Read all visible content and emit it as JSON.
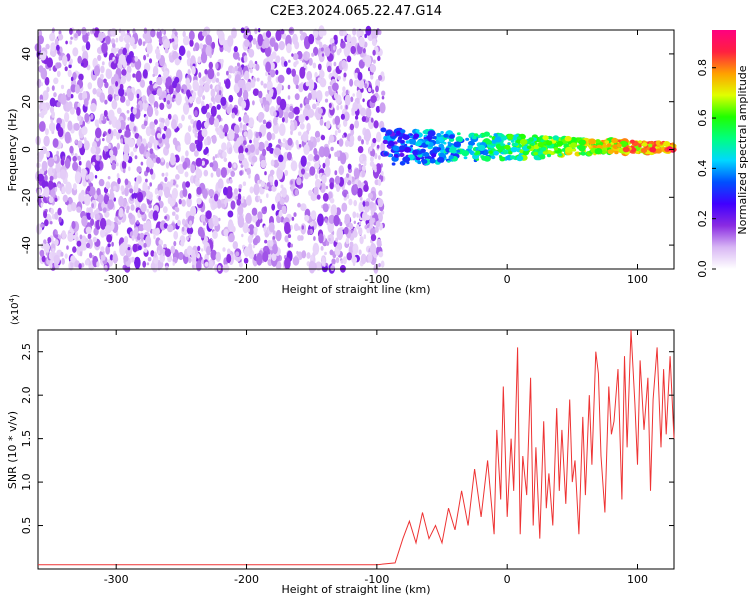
{
  "page": {
    "title": "C2E3.2024.065.22.47.G14"
  },
  "chart_data": [
    {
      "type": "heatmap",
      "xlabel": "Height of straight line (km)",
      "ylabel": "Frequency (Hz)",
      "xlim": [
        -360,
        128
      ],
      "ylim": [
        -50,
        50
      ],
      "x_ticks": [
        -300,
        -200,
        -100,
        0,
        100
      ],
      "x_tick_labels": [
        "-300",
        "-200",
        "-100",
        "0",
        "100"
      ],
      "y_ticks": [
        -40,
        -20,
        0,
        20,
        40
      ],
      "y_tick_labels": [
        "-40",
        "-20",
        "0",
        "20",
        "40"
      ],
      "noise_region_x": [
        -360,
        -95
      ],
      "signal_region_x": [
        -95,
        128
      ],
      "signal_center_hz": 1,
      "colorbar": {
        "label": "Normalized spectral amplitude",
        "range": [
          0,
          0.95
        ],
        "ticks": [
          0,
          0.2,
          0.4,
          0.6,
          0.8
        ],
        "tick_labels": [
          "0.0",
          "0.2",
          "0.4",
          "0.6",
          "0.8"
        ],
        "colors": [
          "#ffffff",
          "#d8b6f4",
          "#8a2be2",
          "#4000ff",
          "#0050ff",
          "#00d8ff",
          "#00ff80",
          "#20ff00",
          "#e0ff00",
          "#ffa000",
          "#ff2040",
          "#ff007f"
        ]
      },
      "grid": false
    },
    {
      "type": "line",
      "xlabel": "Height of straight line (km)",
      "ylabel": "SNR (10 * v/v)",
      "y_multiplier": "(x10",
      "y_multiplier_exp": "4",
      "y_multiplier_close": ")",
      "xlim": [
        -360,
        128
      ],
      "ylim": [
        0,
        27500
      ],
      "x_ticks": [
        -300,
        -200,
        -100,
        0,
        100
      ],
      "x_tick_labels": [
        "-300",
        "-200",
        "-100",
        "0",
        "100"
      ],
      "y_ticks": [
        5000,
        10000,
        15000,
        20000,
        25000
      ],
      "y_tick_labels": [
        "0.5",
        "1.0",
        "1.5",
        "2.0",
        "2.5"
      ],
      "series": [
        {
          "color": "#ee3333",
          "x": [
            -360,
            -300,
            -200,
            -130,
            -100,
            -86,
            -80,
            -75,
            -70,
            -65,
            -60,
            -55,
            -50,
            -45,
            -40,
            -35,
            -30,
            -25,
            -20,
            -15,
            -10,
            -8,
            -5,
            -3,
            0,
            3,
            5,
            8,
            10,
            12,
            15,
            18,
            20,
            22,
            25,
            28,
            30,
            32,
            35,
            38,
            40,
            42,
            45,
            48,
            50,
            52,
            55,
            58,
            60,
            63,
            65,
            68,
            70,
            72,
            75,
            78,
            80,
            82,
            85,
            88,
            90,
            92,
            95,
            98,
            100,
            102,
            105,
            108,
            110,
            112,
            115,
            118,
            120,
            122,
            125,
            128
          ],
          "y": [
            500,
            500,
            500,
            500,
            500,
            700,
            3500,
            5500,
            3000,
            6500,
            3500,
            5000,
            3000,
            7000,
            4500,
            9000,
            5000,
            11500,
            6000,
            12500,
            4000,
            16000,
            8000,
            21000,
            6000,
            15000,
            9000,
            25500,
            4000,
            13000,
            8500,
            22000,
            5000,
            14000,
            3500,
            17000,
            7000,
            11000,
            5000,
            18500,
            9000,
            16000,
            7500,
            19500,
            10000,
            12500,
            4000,
            17500,
            8500,
            20000,
            12000,
            25000,
            22500,
            13000,
            6500,
            21000,
            15500,
            17000,
            23000,
            8000,
            24500,
            14000,
            27500,
            19000,
            12000,
            24000,
            16000,
            22000,
            9000,
            19500,
            25500,
            14000,
            23000,
            15500,
            24500,
            15000
          ]
        }
      ],
      "grid": false
    }
  ]
}
